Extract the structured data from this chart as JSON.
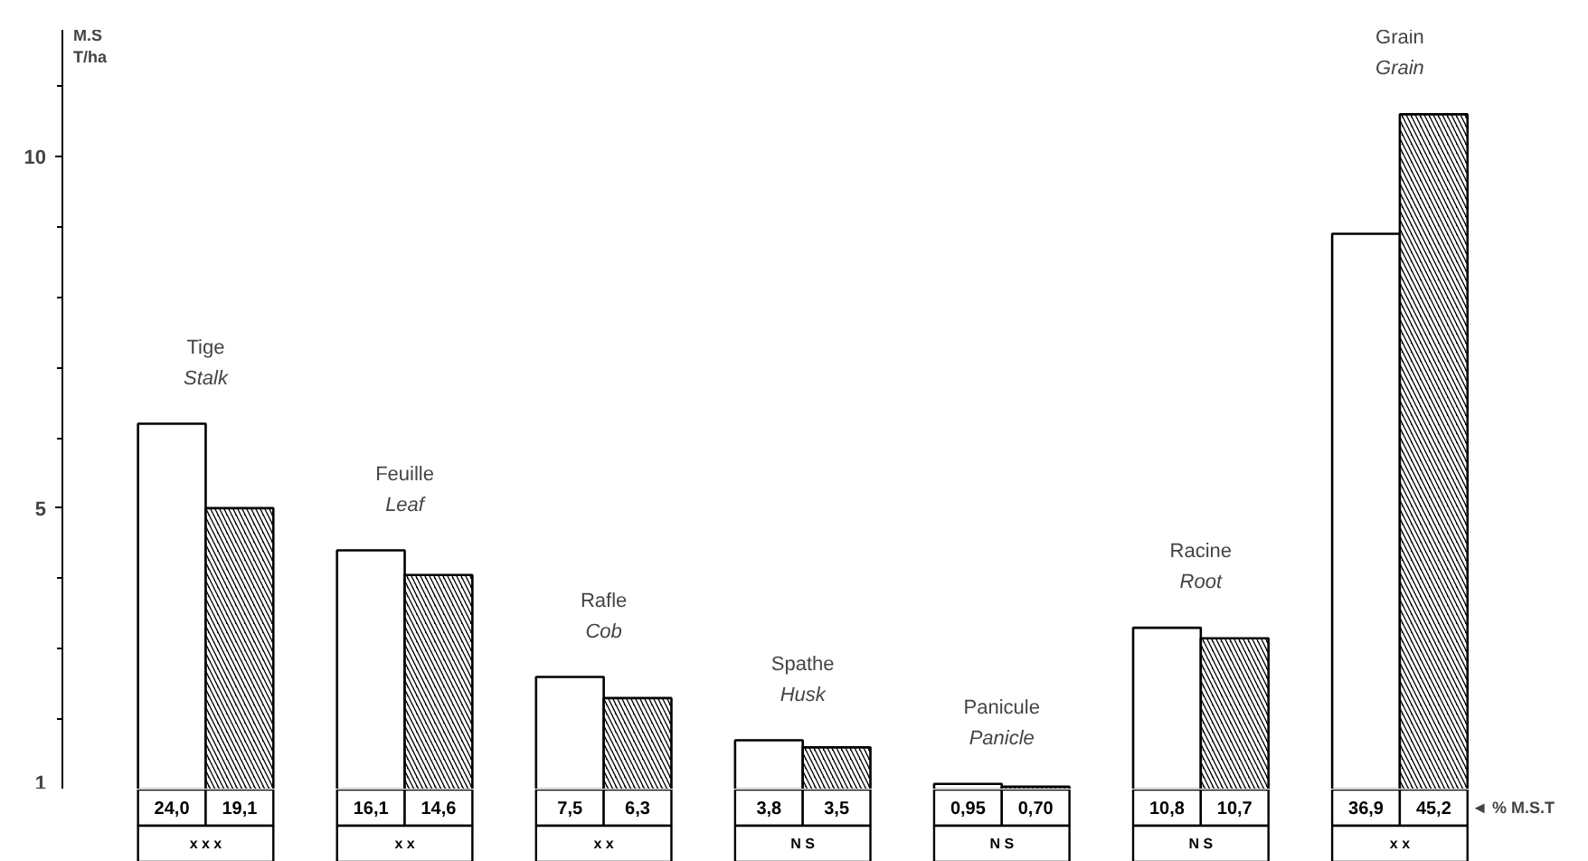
{
  "chart_data": {
    "type": "bar",
    "ylabel": "M.S\nT/ha",
    "categories": [
      "Tige\nStalk",
      "Feuille\nLeaf",
      "Rafle\nCob",
      "Spathe\nHusk",
      "Panicule\nPanicle",
      "Racine\nRoot",
      "Grain\nGrain"
    ],
    "series": [
      {
        "color": "#ffffff",
        "values": [
          6.2,
          4.4,
          2.6,
          1.7,
          1.08,
          3.3,
          8.9
        ]
      },
      {
        "color": "#000000",
        "values": [
          5.0,
          4.05,
          2.3,
          1.6,
          1.04,
          3.15,
          10.6
        ]
      }
    ],
    "ylim": [
      1,
      11.8
    ],
    "yticks": [
      1,
      5,
      10
    ],
    "tick_labels": "y",
    "grid": false,
    "annotations": [
      "◄ % M.S.T",
      "24,0",
      "19,1",
      "x x x",
      "16,1",
      "14,6",
      "x x",
      "7,5",
      "6,3",
      "x x",
      "3,8",
      "3,5",
      "N S",
      "0,95",
      "0,70",
      "N S",
      "10,8",
      "10,7",
      "N S",
      "36,9",
      "45,2",
      "x x"
    ]
  }
}
